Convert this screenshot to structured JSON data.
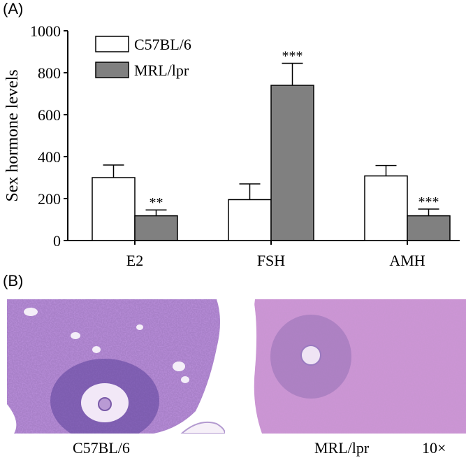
{
  "panels": {
    "a_label": "(A)",
    "b_label": "(B)"
  },
  "chart_data": {
    "type": "bar",
    "categories": [
      "E2",
      "FSH",
      "AMH"
    ],
    "series": [
      {
        "name": "C57BL/6",
        "values": [
          300,
          195,
          308
        ],
        "errors": [
          60,
          75,
          50
        ],
        "significance": [
          "",
          "",
          ""
        ],
        "color": "#ffffff"
      },
      {
        "name": "MRL/lpr",
        "values": [
          118,
          740,
          118
        ],
        "errors": [
          28,
          105,
          32
        ],
        "significance": [
          "**",
          "***",
          "***"
        ],
        "color": "#808080"
      }
    ],
    "ylabel": "Sex hormone levels",
    "xlabel": "",
    "ylim": [
      0,
      1000
    ],
    "yticks": [
      0,
      200,
      400,
      600,
      800,
      1000
    ],
    "legend": "top-left",
    "grid": false
  },
  "histology": {
    "left_caption": "C57BL/6",
    "right_caption": "MRL/lpr",
    "magnification": "10×"
  }
}
